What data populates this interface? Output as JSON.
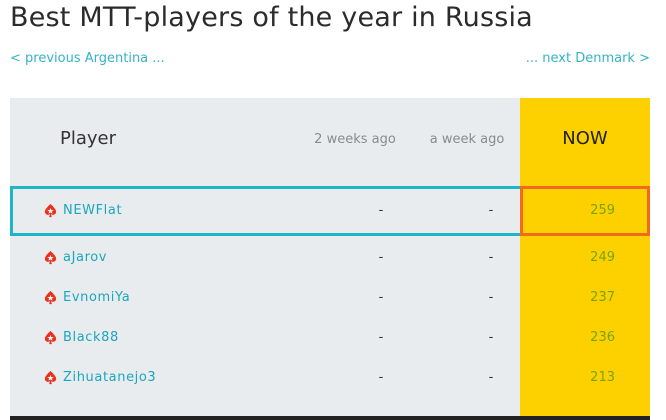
{
  "page": {
    "title": "Best MTT-players of the year in Russia",
    "prev_link": "< previous Argentina ...",
    "next_link": "... next Denmark >"
  },
  "table": {
    "headers": {
      "player": "Player",
      "two_weeks_ago": "2 weeks ago",
      "a_week_ago": "a week ago",
      "now": "NOW"
    },
    "rows": [
      {
        "name": "NEWFlat",
        "two_weeks_ago": "-",
        "a_week_ago": "-",
        "now": "259",
        "highlighted": true
      },
      {
        "name": "aJarov",
        "two_weeks_ago": "-",
        "a_week_ago": "-",
        "now": "249"
      },
      {
        "name": "EvnomiYa",
        "two_weeks_ago": "-",
        "a_week_ago": "-",
        "now": "237"
      },
      {
        "name": "Black88",
        "two_weeks_ago": "-",
        "a_week_ago": "-",
        "now": "236"
      },
      {
        "name": "Zihuatanejo3",
        "two_weeks_ago": "-",
        "a_week_ago": "-",
        "now": "213"
      }
    ]
  },
  "icons": {
    "player_row": "pokerstars-spade-icon"
  },
  "colors": {
    "accent_teal": "#1aa7bd",
    "now_column": "#fdd000",
    "highlight_border": "#1fb5c7",
    "now_highlight_border": "#f26b1d",
    "points": "#7aa30a",
    "table_bg": "#e9ecef"
  }
}
